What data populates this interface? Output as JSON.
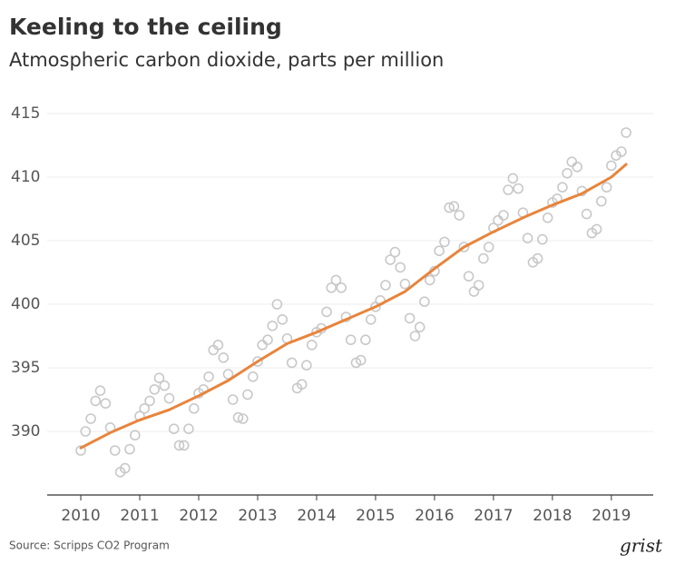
{
  "chart_data": {
    "type": "scatter",
    "title": "Keeling to the ceiling",
    "subtitle": "Atmospheric carbon dioxide, parts per million",
    "source": "Source: Scripps CO2 Program",
    "brand": "grist",
    "xlim": [
      2009.43,
      2019.71
    ],
    "xticks": [
      2010,
      2011,
      2012,
      2013,
      2014,
      2015,
      2016,
      2017,
      2018,
      2019
    ],
    "ylim": [
      385,
      416
    ],
    "yticks": [
      390,
      395,
      400,
      405,
      410,
      415
    ],
    "grid": true,
    "series": [
      {
        "type": "scatter",
        "color": "#c8c8c8",
        "x": [
          2010.0,
          2010.08,
          2010.17,
          2010.25,
          2010.33,
          2010.42,
          2010.5,
          2010.58,
          2010.67,
          2010.75,
          2010.83,
          2010.92,
          2011.0,
          2011.08,
          2011.17,
          2011.25,
          2011.33,
          2011.42,
          2011.5,
          2011.58,
          2011.67,
          2011.75,
          2011.83,
          2011.92,
          2012.0,
          2012.08,
          2012.17,
          2012.25,
          2012.33,
          2012.42,
          2012.5,
          2012.58,
          2012.67,
          2012.75,
          2012.83,
          2012.92,
          2013.0,
          2013.08,
          2013.17,
          2013.25,
          2013.33,
          2013.42,
          2013.5,
          2013.58,
          2013.67,
          2013.75,
          2013.83,
          2013.92,
          2014.0,
          2014.08,
          2014.17,
          2014.25,
          2014.33,
          2014.42,
          2014.5,
          2014.58,
          2014.67,
          2014.75,
          2014.83,
          2014.92,
          2015.0,
          2015.08,
          2015.17,
          2015.25,
          2015.33,
          2015.42,
          2015.5,
          2015.58,
          2015.67,
          2015.75,
          2015.83,
          2015.92,
          2016.0,
          2016.08,
          2016.17,
          2016.25,
          2016.33,
          2016.42,
          2016.5,
          2016.58,
          2016.67,
          2016.75,
          2016.83,
          2016.92,
          2017.0,
          2017.08,
          2017.17,
          2017.25,
          2017.33,
          2017.42,
          2017.5,
          2017.58,
          2017.67,
          2017.75,
          2017.83,
          2017.92,
          2018.0,
          2018.08,
          2018.17,
          2018.25,
          2018.33,
          2018.42,
          2018.5,
          2018.58,
          2018.67,
          2018.75,
          2018.83,
          2018.92,
          2019.0,
          2019.08,
          2019.17,
          2019.25
        ],
        "values": [
          388.5,
          390.0,
          391.0,
          392.4,
          393.2,
          392.2,
          390.3,
          388.5,
          386.8,
          387.1,
          388.6,
          389.7,
          391.2,
          391.8,
          392.4,
          393.3,
          394.2,
          393.6,
          392.6,
          390.2,
          388.9,
          388.9,
          390.2,
          391.8,
          393.0,
          393.3,
          394.3,
          396.4,
          396.8,
          395.8,
          394.5,
          392.5,
          391.1,
          391.0,
          392.9,
          394.3,
          395.5,
          396.8,
          397.2,
          398.3,
          400.0,
          398.8,
          397.3,
          395.4,
          393.4,
          393.7,
          395.2,
          396.8,
          397.8,
          398.1,
          399.4,
          401.3,
          401.9,
          401.3,
          399.0,
          397.2,
          395.4,
          395.6,
          397.2,
          398.8,
          399.8,
          400.3,
          401.5,
          403.5,
          404.1,
          402.9,
          401.6,
          398.9,
          397.5,
          398.2,
          400.2,
          401.9,
          402.6,
          404.2,
          404.9,
          407.6,
          407.7,
          407.0,
          404.5,
          402.2,
          401.0,
          401.5,
          403.6,
          404.5,
          406.0,
          406.6,
          407.0,
          409.0,
          409.9,
          409.1,
          407.2,
          405.2,
          403.3,
          403.6,
          405.1,
          406.8,
          408.0,
          408.3,
          409.2,
          410.3,
          411.2,
          410.8,
          408.9,
          407.1,
          405.6,
          405.9,
          408.1,
          409.2,
          410.9,
          411.7,
          412.0,
          413.5
        ]
      },
      {
        "type": "line",
        "color": "#e8843c",
        "x": [
          2010.0,
          2010.5,
          2011.0,
          2011.5,
          2012.0,
          2012.5,
          2013.0,
          2013.5,
          2014.0,
          2014.5,
          2015.0,
          2015.5,
          2016.0,
          2016.5,
          2017.0,
          2017.5,
          2018.0,
          2018.5,
          2019.0,
          2019.25
        ],
        "values": [
          388.7,
          389.9,
          390.9,
          391.7,
          392.8,
          394.0,
          395.5,
          396.9,
          397.8,
          398.8,
          399.8,
          401.0,
          402.8,
          404.5,
          405.7,
          406.8,
          407.8,
          408.7,
          410.0,
          411.0
        ]
      }
    ]
  }
}
